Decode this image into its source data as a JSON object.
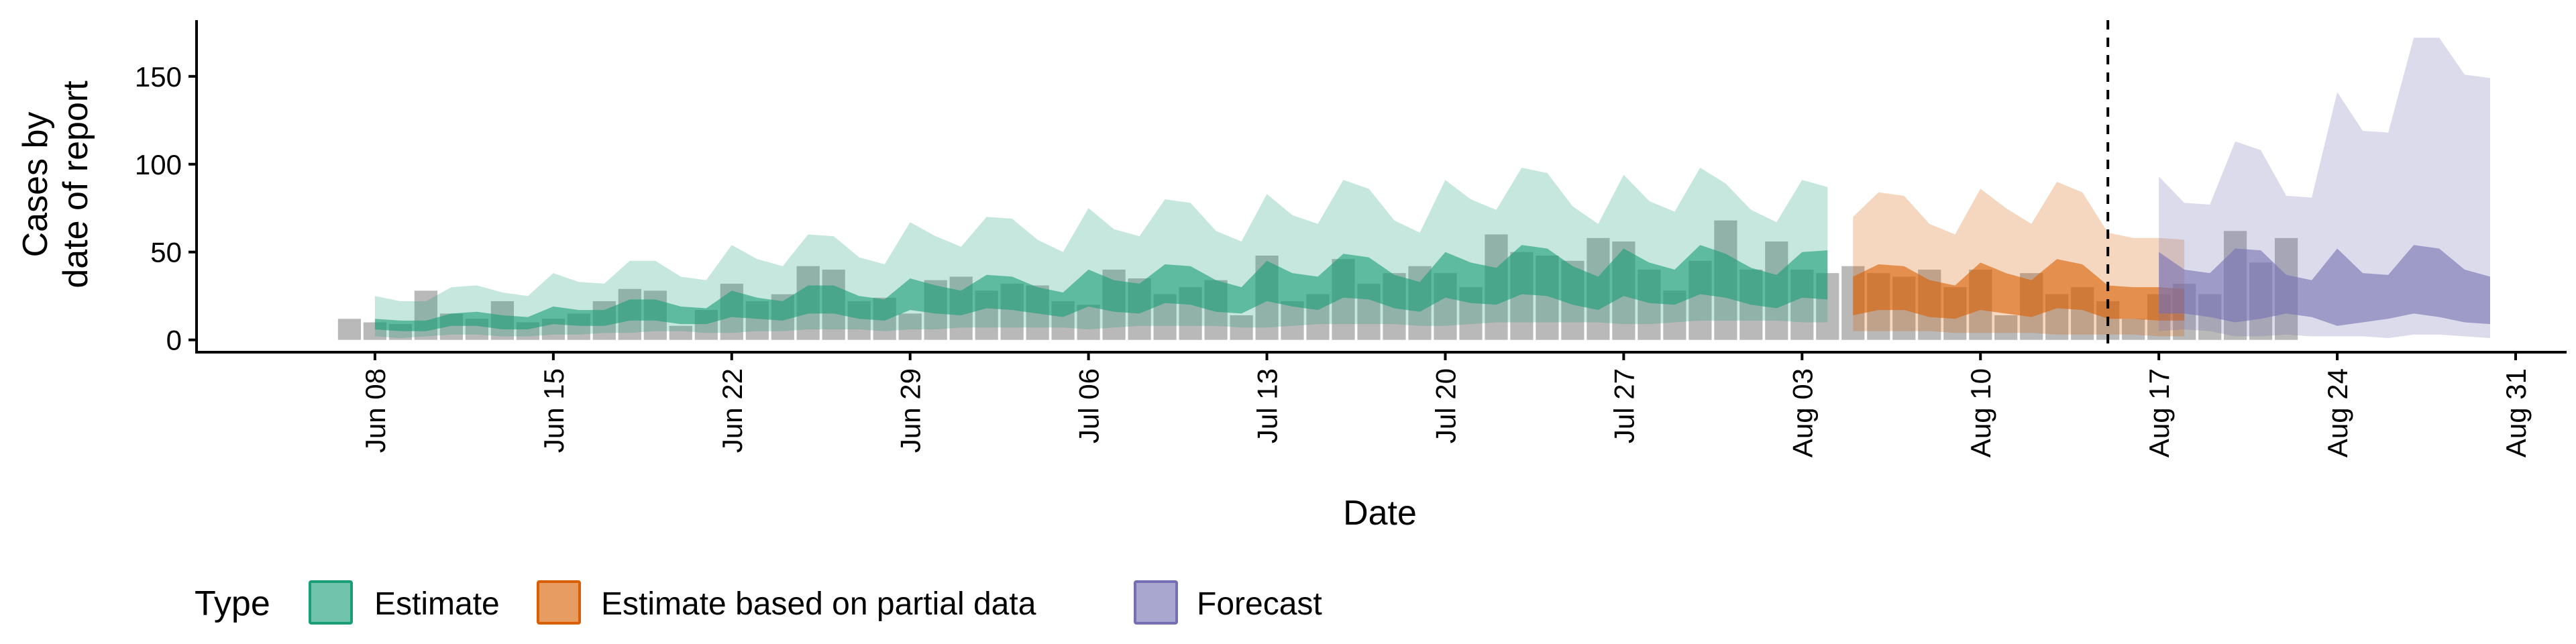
{
  "chart_data": {
    "type": "area",
    "xlabel": "Date",
    "ylabel_lines": [
      "Cases by",
      "date of report"
    ],
    "legend_title": "Type",
    "legend_position": "bottom-left",
    "grid": false,
    "x_range": [
      "2020-06-01",
      "2020-09-02"
    ],
    "ylim": [
      -7,
      182
    ],
    "y_ticks": [
      0,
      50,
      100,
      150
    ],
    "x_ticks": [
      {
        "date": "2020-06-08",
        "label": "Jun 08"
      },
      {
        "date": "2020-06-15",
        "label": "Jun 15"
      },
      {
        "date": "2020-06-22",
        "label": "Jun 22"
      },
      {
        "date": "2020-06-29",
        "label": "Jun 29"
      },
      {
        "date": "2020-07-06",
        "label": "Jul 06"
      },
      {
        "date": "2020-07-13",
        "label": "Jul 13"
      },
      {
        "date": "2020-07-20",
        "label": "Jul 20"
      },
      {
        "date": "2020-07-27",
        "label": "Jul 27"
      },
      {
        "date": "2020-08-03",
        "label": "Aug 03"
      },
      {
        "date": "2020-08-10",
        "label": "Aug 10"
      },
      {
        "date": "2020-08-17",
        "label": "Aug 17"
      },
      {
        "date": "2020-08-24",
        "label": "Aug 24"
      },
      {
        "date": "2020-08-31",
        "label": "Aug 31"
      }
    ],
    "reference_line_date": "2020-08-15",
    "bars": {
      "start_date": "2020-06-07",
      "color": "#9e9e9e",
      "values": [
        12,
        10,
        9,
        28,
        15,
        12,
        22,
        10,
        12,
        15,
        22,
        29,
        28,
        8,
        17,
        32,
        22,
        26,
        42,
        40,
        22,
        24,
        15,
        34,
        36,
        28,
        32,
        31,
        22,
        20,
        40,
        35,
        26,
        30,
        34,
        14,
        48,
        22,
        26,
        46,
        32,
        38,
        42,
        38,
        30,
        60,
        50,
        48,
        45,
        58,
        56,
        40,
        28,
        45,
        68,
        40,
        56,
        40,
        38,
        42,
        38,
        36,
        40,
        30,
        40,
        14,
        38,
        26,
        30,
        22,
        12,
        26,
        32,
        26,
        62,
        44,
        58
      ]
    },
    "series": [
      {
        "name": "Estimate",
        "color": "#1b9e77",
        "start_date": "2020-06-08",
        "outer_lower": [
          2,
          1,
          2,
          3,
          3,
          2,
          2,
          3,
          3,
          4,
          4,
          5,
          5,
          4,
          4,
          5,
          5,
          6,
          6,
          6,
          5,
          6,
          6,
          7,
          7,
          7,
          7,
          7,
          6,
          7,
          8,
          8,
          8,
          8,
          7,
          7,
          8,
          9,
          9,
          9,
          9,
          8,
          8,
          9,
          10,
          10,
          10,
          10,
          10,
          9,
          9,
          10,
          11,
          11,
          11,
          11,
          10,
          10
        ],
        "outer_upper": [
          25,
          22,
          22,
          30,
          31,
          27,
          25,
          38,
          33,
          32,
          45,
          45,
          36,
          34,
          54,
          46,
          42,
          60,
          59,
          47,
          43,
          67,
          59,
          53,
          70,
          69,
          57,
          50,
          75,
          63,
          59,
          80,
          78,
          62,
          56,
          83,
          71,
          66,
          91,
          86,
          68,
          61,
          91,
          80,
          74,
          98,
          95,
          76,
          66,
          94,
          79,
          73,
          98,
          89,
          74,
          67,
          91,
          87
        ],
        "inner_lower": [
          6,
          5,
          5,
          8,
          8,
          6,
          6,
          9,
          8,
          8,
          11,
          11,
          9,
          9,
          13,
          12,
          11,
          15,
          15,
          12,
          11,
          17,
          15,
          14,
          18,
          17,
          15,
          13,
          19,
          16,
          15,
          21,
          20,
          16,
          15,
          22,
          19,
          17,
          24,
          23,
          18,
          16,
          24,
          21,
          20,
          26,
          25,
          20,
          17,
          25,
          21,
          20,
          26,
          24,
          20,
          18,
          24,
          23
        ],
        "inner_upper": [
          12,
          11,
          11,
          15,
          16,
          14,
          13,
          19,
          17,
          17,
          23,
          23,
          19,
          18,
          28,
          24,
          22,
          31,
          31,
          25,
          23,
          35,
          31,
          28,
          37,
          36,
          30,
          27,
          40,
          34,
          32,
          43,
          42,
          34,
          30,
          45,
          38,
          36,
          49,
          47,
          37,
          33,
          50,
          44,
          41,
          54,
          52,
          42,
          36,
          52,
          44,
          40,
          54,
          49,
          41,
          37,
          50,
          51
        ]
      },
      {
        "name": "Estimate based on partial data",
        "color": "#d95f02",
        "start_date": "2020-08-05",
        "outer_lower": [
          5,
          5,
          5,
          5,
          4,
          4,
          4,
          4,
          3,
          3,
          3,
          3,
          2,
          2
        ],
        "outer_upper": [
          70,
          84,
          82,
          66,
          60,
          86,
          75,
          66,
          90,
          84,
          61,
          58,
          58,
          57
        ],
        "inner_lower": [
          14,
          17,
          17,
          13,
          12,
          17,
          15,
          13,
          18,
          17,
          12,
          12,
          11,
          11
        ],
        "inner_upper": [
          36,
          43,
          42,
          34,
          31,
          44,
          38,
          34,
          46,
          43,
          31,
          30,
          30,
          29
        ]
      },
      {
        "name": "Forecast",
        "color": "#7570b3",
        "start_date": "2020-08-17",
        "outer_lower": [
          5,
          6,
          5,
          2,
          2,
          3,
          2,
          2,
          2,
          1,
          3,
          3,
          2,
          1
        ],
        "outer_upper": [
          93,
          78,
          77,
          113,
          108,
          82,
          81,
          141,
          119,
          118,
          172,
          172,
          151,
          149
        ],
        "inner_lower": [
          15,
          15,
          13,
          10,
          12,
          15,
          13,
          8,
          10,
          12,
          15,
          13,
          10,
          9
        ],
        "inner_upper": [
          50,
          40,
          38,
          52,
          51,
          37,
          34,
          52,
          38,
          37,
          54,
          52,
          40,
          36
        ]
      }
    ]
  }
}
